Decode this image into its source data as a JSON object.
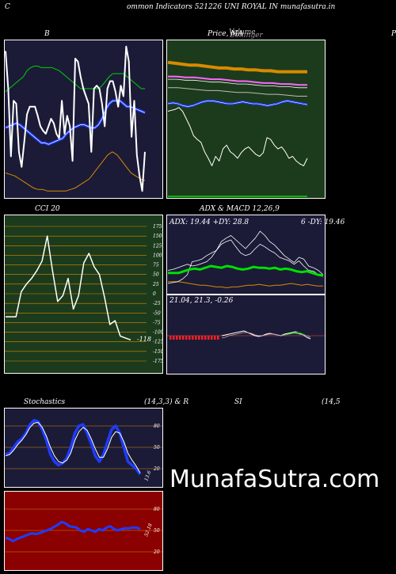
{
  "header": {
    "left_letter": "C",
    "title": "ommon  Indicators 521226  UNI ROYAL  IN  munafasutra.in"
  },
  "panels": {
    "bollinger": {
      "title": "B",
      "bg": "#1b1b38"
    },
    "price_ma": {
      "title": "Price,  MA",
      "overlay": "Volume",
      "overlay2": "Bollinger",
      "right_letter": "P",
      "bg": "#1c3b1c"
    },
    "cci": {
      "title": "CCI 20",
      "bg": "#1c3b1c",
      "value_label": "-118",
      "ticks": [
        "175",
        "150",
        "125",
        "100",
        "75",
        "50",
        "25",
        "0",
        "-25",
        "-50",
        "-75",
        "-100",
        "-125",
        "-150",
        "-175"
      ]
    },
    "adx": {
      "title": "ADX  & MACD 12,26,9",
      "line1": "ADX: 19.44   +DY: 28.8",
      "line1_right": "6   -DY: 19.46",
      "bg": "#1b1b38"
    },
    "macd": {
      "values": "21.04,  21.3,  -0.26",
      "bg": "#1b1b38"
    },
    "stochastics": {
      "title": "Stochastics",
      "params": "(14,3,3) & R",
      "bg": "#1b1b38",
      "ticks": [
        "80",
        "50",
        "20"
      ],
      "value_label": "13.6"
    },
    "rsi": {
      "title": "SI",
      "params": "(14,5",
      "bg": "#8b0000",
      "ticks": [
        "80",
        "50",
        "20"
      ],
      "value_label": "52.18"
    }
  },
  "watermark": "MunafaSutra.com",
  "colors": {
    "navy": "#1b1b38",
    "green": "#1c3b1c",
    "red": "#8b0000",
    "orange": "#d88a00",
    "blue": "#1e3cff",
    "bright_green": "#00e000"
  },
  "chart_data": [
    {
      "type": "line",
      "title": "B",
      "series": [
        {
          "values": [
            95,
            70,
            25,
            62,
            60,
            28,
            18,
            35,
            53,
            58,
            58,
            58,
            52,
            45,
            42,
            40,
            45,
            50,
            47,
            40,
            37,
            62,
            40,
            52,
            45,
            22,
            90,
            88,
            78,
            70,
            65,
            60,
            28,
            70,
            72,
            70,
            60,
            45,
            70,
            75,
            75,
            68,
            58,
            72,
            65,
            98,
            88,
            38,
            62,
            26,
            12,
            2,
            28
          ]
        },
        {
          "values": [
            44,
            45,
            46,
            47,
            46,
            44,
            42,
            40,
            38,
            36,
            34,
            34,
            33,
            34,
            35,
            36,
            37,
            40,
            42,
            44,
            45,
            46,
            46,
            45,
            44,
            44,
            46,
            50,
            56,
            60,
            62,
            62,
            62,
            60,
            58,
            58,
            57,
            56,
            55,
            54
          ]
        },
        {
          "values": [
            68,
            70,
            72,
            74,
            76,
            78,
            82,
            84,
            85,
            85,
            84,
            84,
            84,
            84,
            83,
            82,
            80,
            78,
            76,
            74,
            72,
            70,
            70,
            70,
            70,
            70,
            70,
            72,
            75,
            78,
            80,
            80,
            80,
            80,
            78,
            76,
            74,
            72,
            70,
            70
          ]
        },
        {
          "values": [
            14,
            13,
            12,
            10,
            8,
            6,
            4,
            3,
            3,
            2,
            2,
            2,
            2,
            2,
            3,
            4,
            6,
            8,
            10,
            14,
            18,
            22,
            26,
            28,
            26,
            22,
            18,
            14,
            12,
            10,
            9
          ]
        }
      ]
    },
    {
      "type": "line",
      "title": "Price,  MA",
      "series": [
        {
          "values": [
            88,
            89,
            90,
            92,
            88,
            80,
            72,
            62,
            58,
            55,
            45,
            38,
            30,
            40,
            35,
            48,
            52,
            45,
            42,
            38,
            44,
            48,
            50,
            46,
            42,
            40,
            44,
            60,
            58,
            52,
            48,
            50,
            45,
            38,
            40,
            35,
            32,
            30,
            38
          ]
        },
        {
          "values": [
            140,
            139,
            138,
            137,
            137,
            136,
            135,
            134,
            134,
            133,
            133,
            132,
            132,
            131,
            131,
            130,
            130,
            130,
            130,
            130
          ]
        },
        {
          "values": [
            125,
            125,
            124,
            124,
            123,
            122,
            122,
            121,
            120,
            120,
            119,
            118,
            118,
            117,
            117,
            116,
            116
          ]
        },
        {
          "values": [
            113,
            113,
            112,
            111,
            110,
            110,
            109,
            108,
            108,
            107,
            106,
            106,
            105,
            104,
            104
          ]
        },
        {
          "values": [
            96,
            97,
            96,
            94,
            93,
            94,
            96,
            98,
            99,
            99,
            98,
            97,
            96,
            96,
            97,
            98,
            97,
            96,
            96,
            95,
            94,
            95,
            96,
            98,
            99,
            98,
            97,
            96,
            95
          ]
        }
      ]
    },
    {
      "type": "line",
      "title": "CCI 20",
      "ylim": [
        -175,
        175
      ],
      "series": [
        {
          "values": [
            -60,
            -60,
            -60,
            5,
            25,
            40,
            60,
            85,
            150,
            60,
            -20,
            -5,
            40,
            -40,
            -5,
            80,
            105,
            70,
            50,
            -10,
            -80,
            -70,
            -110,
            -115,
            -120
          ]
        }
      ]
    },
    {
      "type": "line",
      "title": "ADX  & MACD 12,26,9",
      "series": [
        {
          "values": [
            10,
            11,
            12,
            15,
            20,
            35,
            36,
            38,
            42,
            45,
            48,
            58,
            62,
            65,
            60,
            55,
            50,
            56,
            62,
            70,
            65,
            58,
            54,
            48,
            42,
            38,
            34,
            40,
            38,
            30,
            28,
            25,
            20
          ]
        },
        {
          "values": [
            25,
            26,
            28,
            30,
            32,
            30,
            31,
            33,
            35,
            40,
            48,
            55,
            58,
            60,
            52,
            45,
            42,
            44,
            50,
            55,
            52,
            48,
            45,
            40,
            38,
            36,
            32,
            36,
            30,
            25,
            24,
            20,
            18
          ]
        },
        {
          "values": [
            22,
            22,
            22,
            24,
            26,
            27,
            26,
            28,
            30,
            29,
            28,
            30,
            29,
            27,
            26,
            27,
            29,
            28,
            28,
            27,
            28,
            26,
            27,
            26,
            24,
            23,
            24,
            22,
            20,
            19
          ]
        },
        {
          "values": [
            12,
            12,
            12,
            11,
            10,
            9,
            8,
            8,
            7,
            6,
            6,
            5,
            6,
            6,
            7,
            8,
            8,
            9,
            8,
            7,
            8,
            8,
            9,
            10,
            9,
            8,
            9,
            8,
            7,
            7
          ]
        }
      ]
    },
    {
      "type": "line",
      "title": "Stochastics",
      "ylim": [
        0,
        100
      ],
      "series": [
        {
          "values": [
            40,
            42,
            50,
            58,
            62,
            70,
            82,
            88,
            86,
            75,
            60,
            40,
            30,
            25,
            28,
            35,
            50,
            70,
            80,
            82,
            70,
            55,
            38,
            30,
            40,
            58,
            75,
            80,
            70,
            50,
            30,
            25,
            20,
            12
          ]
        },
        {
          "values": [
            38,
            40,
            46,
            54,
            60,
            68,
            78,
            84,
            85,
            78,
            66,
            50,
            38,
            30,
            28,
            32,
            42,
            60,
            72,
            78,
            74,
            62,
            48,
            36,
            36,
            48,
            64,
            72,
            70,
            58,
            42,
            32,
            24,
            14
          ]
        }
      ]
    },
    {
      "type": "line",
      "title": "SI",
      "ylim": [
        0,
        100
      ],
      "series": [
        {
          "values": [
            40,
            38,
            35,
            38,
            40,
            42,
            44,
            46,
            45,
            46,
            48,
            50,
            52,
            55,
            58,
            62,
            60,
            56,
            55,
            54,
            50,
            48,
            52,
            50,
            48,
            52,
            50,
            54,
            56,
            52,
            50,
            52,
            53,
            53,
            54,
            54,
            52
          ]
        }
      ]
    }
  ]
}
